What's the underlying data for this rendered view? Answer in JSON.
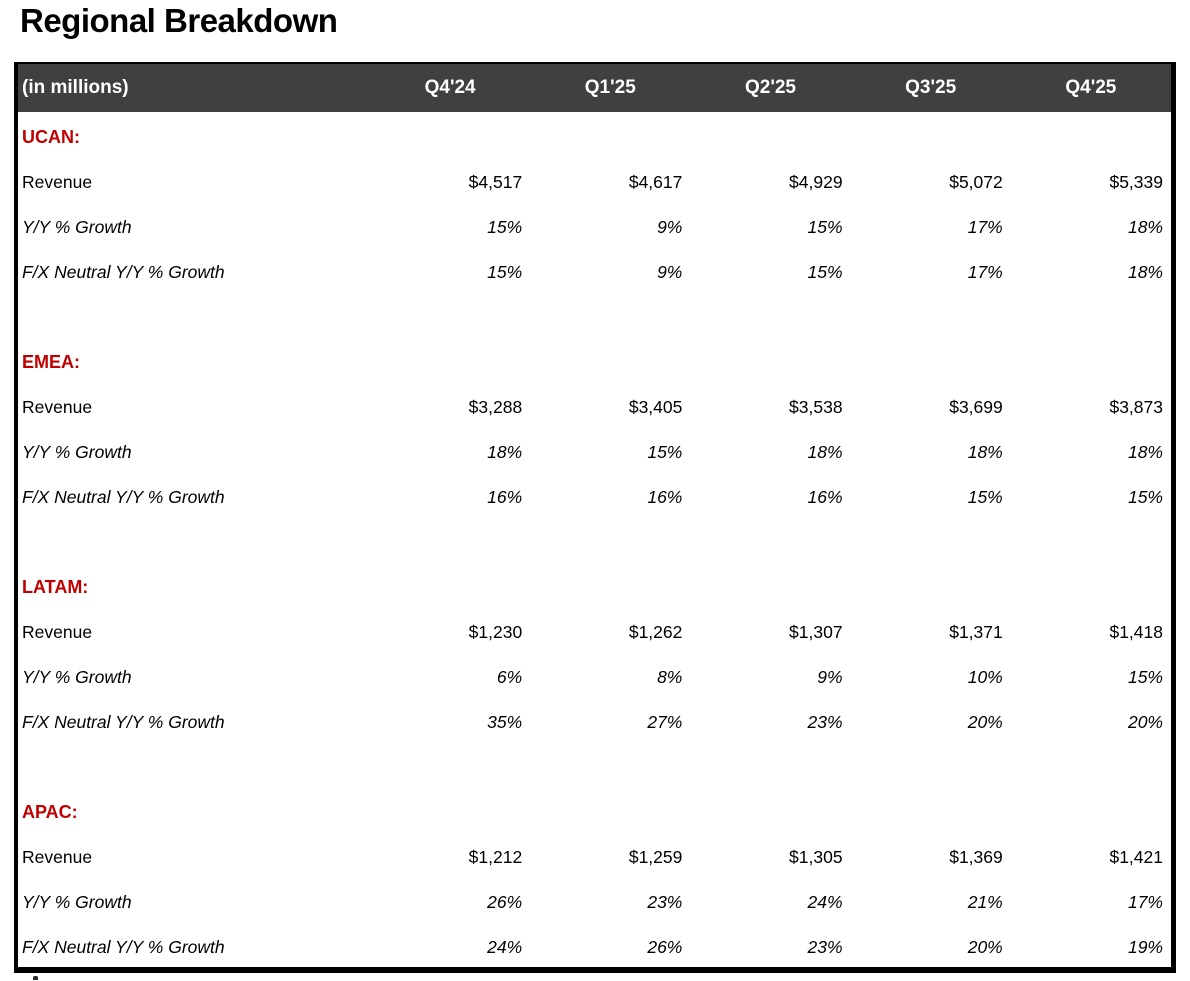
{
  "page_title": "Regional Breakdown",
  "colors": {
    "header_bg": "#404040",
    "header_text": "#FFFFFF",
    "region_label": "#C00000",
    "body_text": "#000000",
    "table_border": "#000000",
    "page_bg": "#FFFFFF"
  },
  "chart_data": {
    "type": "table",
    "title": "Regional Breakdown",
    "unit_label": "(in millions)",
    "columns": [
      "Q4'24",
      "Q1'25",
      "Q2'25",
      "Q3'25",
      "Q4'25"
    ],
    "sections": [
      {
        "region_label": "UCAN:",
        "rows": [
          {
            "label": "Revenue",
            "values": [
              "$4,517",
              "$4,617",
              "$4,929",
              "$5,072",
              "$5,339"
            ]
          },
          {
            "label": "Y/Y % Growth",
            "values": [
              "15%",
              "9%",
              "15%",
              "17%",
              "18%"
            ]
          },
          {
            "label": "F/X Neutral Y/Y % Growth",
            "values": [
              "15%",
              "9%",
              "15%",
              "17%",
              "18%"
            ]
          }
        ]
      },
      {
        "region_label": "EMEA:",
        "rows": [
          {
            "label": "Revenue",
            "values": [
              "$3,288",
              "$3,405",
              "$3,538",
              "$3,699",
              "$3,873"
            ]
          },
          {
            "label": "Y/Y % Growth",
            "values": [
              "18%",
              "15%",
              "18%",
              "18%",
              "18%"
            ]
          },
          {
            "label": "F/X Neutral Y/Y % Growth",
            "values": [
              "16%",
              "16%",
              "16%",
              "15%",
              "15%"
            ]
          }
        ]
      },
      {
        "region_label": "LATAM:",
        "rows": [
          {
            "label": "Revenue",
            "values": [
              "$1,230",
              "$1,262",
              "$1,307",
              "$1,371",
              "$1,418"
            ]
          },
          {
            "label": "Y/Y % Growth",
            "values": [
              "6%",
              "8%",
              "9%",
              "10%",
              "15%"
            ]
          },
          {
            "label": "F/X Neutral Y/Y % Growth",
            "values": [
              "35%",
              "27%",
              "23%",
              "20%",
              "20%"
            ]
          }
        ]
      },
      {
        "region_label": "APAC:",
        "rows": [
          {
            "label": "Revenue",
            "values": [
              "$1,212",
              "$1,259",
              "$1,305",
              "$1,369",
              "$1,421"
            ]
          },
          {
            "label": "Y/Y % Growth",
            "values": [
              "26%",
              "23%",
              "24%",
              "21%",
              "17%"
            ]
          },
          {
            "label": "F/X Neutral Y/Y % Growth",
            "values": [
              "24%",
              "26%",
              "23%",
              "20%",
              "19%"
            ]
          }
        ]
      }
    ]
  }
}
